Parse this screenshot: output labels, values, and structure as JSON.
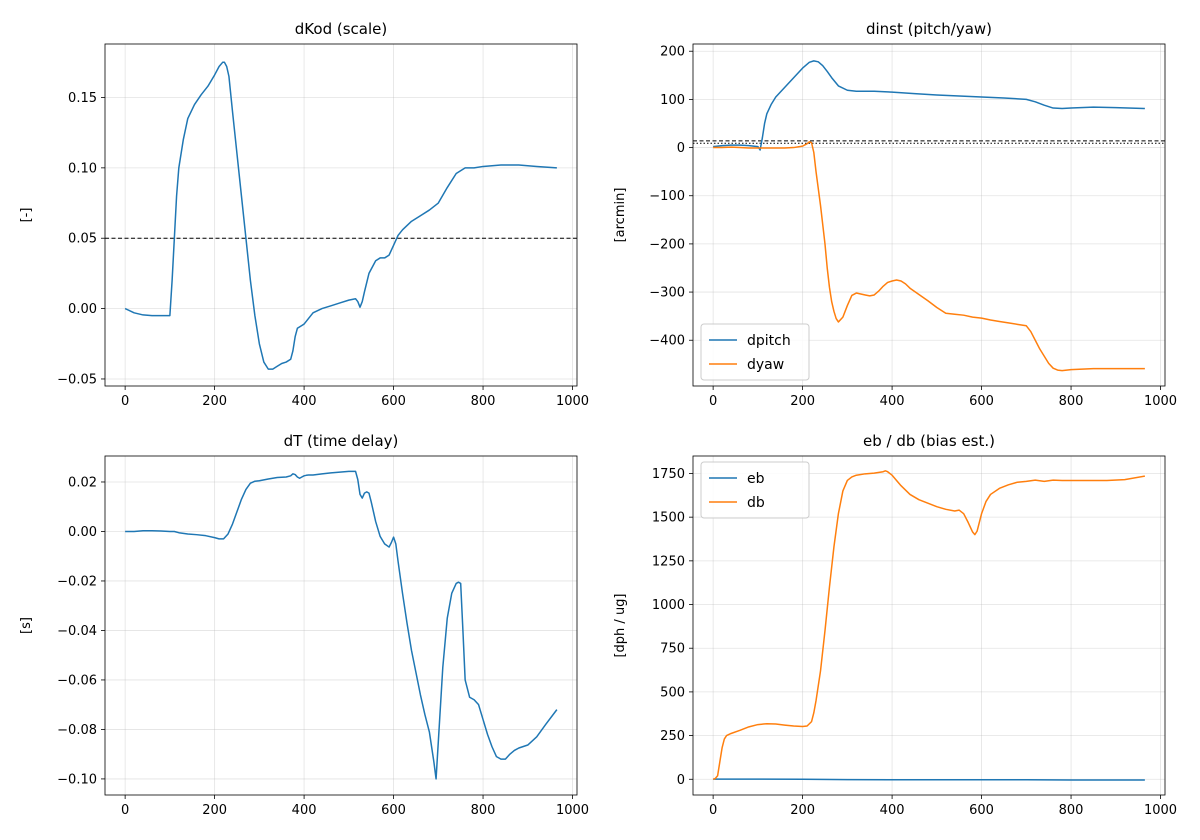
{
  "chart_data": [
    {
      "type": "line",
      "title": "dKod (scale)",
      "xlabel": "",
      "ylabel": "[-]",
      "xlim": [
        -45,
        1010
      ],
      "ylim": [
        -0.055,
        0.188
      ],
      "xticks": [
        0,
        200,
        400,
        600,
        800,
        1000
      ],
      "xtick_labels": [
        "0",
        "200",
        "400",
        "600",
        "800",
        "1000"
      ],
      "yticks": [
        -0.05,
        0.0,
        0.05,
        0.1,
        0.15
      ],
      "ytick_labels": [
        "−0.05",
        "0.00",
        "0.05",
        "0.10",
        "0.15"
      ],
      "grid": true,
      "legend": null,
      "hlines": [
        {
          "y": 0.05,
          "style": "dashed",
          "color": "#000000"
        }
      ],
      "series": [
        {
          "color": "#1f77b4",
          "x": [
            0,
            20,
            40,
            60,
            80,
            100,
            105,
            110,
            115,
            120,
            130,
            140,
            155,
            170,
            185,
            200,
            210,
            218,
            222,
            227,
            232,
            240,
            250,
            260,
            270,
            280,
            290,
            300,
            310,
            320,
            330,
            340,
            350,
            360,
            370,
            375,
            380,
            385,
            390,
            395,
            400,
            410,
            420,
            440,
            460,
            480,
            500,
            515,
            520,
            525,
            530,
            535,
            545,
            560,
            570,
            580,
            590,
            600,
            610,
            620,
            640,
            660,
            680,
            700,
            720,
            740,
            760,
            780,
            800,
            840,
            880,
            920,
            965
          ],
          "y": [
            0.0,
            -0.003,
            -0.0045,
            -0.005,
            -0.005,
            -0.005,
            0.02,
            0.05,
            0.08,
            0.1,
            0.12,
            0.135,
            0.145,
            0.152,
            0.158,
            0.166,
            0.172,
            0.175,
            0.175,
            0.172,
            0.165,
            0.14,
            0.11,
            0.08,
            0.05,
            0.02,
            -0.005,
            -0.025,
            -0.038,
            -0.043,
            -0.043,
            -0.041,
            -0.039,
            -0.038,
            -0.036,
            -0.03,
            -0.02,
            -0.014,
            -0.013,
            -0.012,
            -0.011,
            -0.007,
            -0.003,
            0.0,
            0.002,
            0.004,
            0.006,
            0.007,
            0.005,
            0.001,
            0.005,
            0.012,
            0.025,
            0.034,
            0.036,
            0.036,
            0.038,
            0.045,
            0.052,
            0.056,
            0.062,
            0.066,
            0.07,
            0.075,
            0.086,
            0.096,
            0.1,
            0.1,
            0.101,
            0.102,
            0.102,
            0.101,
            0.1
          ]
        }
      ]
    },
    {
      "type": "line",
      "title": "dinst (pitch/yaw)",
      "xlabel": "",
      "ylabel": "[arcmin]",
      "xlim": [
        -45,
        1010
      ],
      "ylim": [
        -495,
        215
      ],
      "xticks": [
        0,
        200,
        400,
        600,
        800,
        1000
      ],
      "xtick_labels": [
        "0",
        "200",
        "400",
        "600",
        "800",
        "1000"
      ],
      "yticks": [
        -400,
        -300,
        -200,
        -100,
        0,
        100,
        200
      ],
      "ytick_labels": [
        "−400",
        "−300",
        "−200",
        "−100",
        "0",
        "100",
        "200"
      ],
      "grid": true,
      "legend": {
        "position": "lower-left",
        "entries": [
          "dpitch",
          "dyaw"
        ]
      },
      "hlines": [
        {
          "y": 14,
          "style": "dashed",
          "color": "#000000"
        },
        {
          "y": 9,
          "style": "dotted",
          "color": "#000000"
        }
      ],
      "series": [
        {
          "name": "dpitch",
          "color": "#1f77b4",
          "x": [
            0,
            20,
            40,
            60,
            80,
            100,
            105,
            110,
            115,
            120,
            130,
            140,
            160,
            180,
            200,
            215,
            225,
            235,
            245,
            255,
            265,
            280,
            300,
            320,
            340,
            360,
            400,
            450,
            500,
            550,
            600,
            650,
            700,
            720,
            740,
            760,
            780,
            800,
            850,
            900,
            965
          ],
          "y": [
            2,
            4,
            5,
            5,
            4,
            2,
            -5,
            20,
            50,
            70,
            90,
            105,
            125,
            145,
            165,
            177,
            180,
            178,
            170,
            158,
            145,
            128,
            119,
            117,
            117,
            117,
            115,
            112,
            109,
            107,
            105,
            103,
            100,
            95,
            88,
            82,
            81,
            82,
            84,
            83,
            81
          ]
        },
        {
          "name": "dyaw",
          "color": "#ff7f0e",
          "x": [
            0,
            20,
            40,
            60,
            80,
            100,
            120,
            140,
            160,
            180,
            200,
            210,
            215,
            220,
            225,
            230,
            240,
            250,
            255,
            260,
            265,
            270,
            275,
            280,
            290,
            300,
            310,
            320,
            330,
            340,
            350,
            360,
            370,
            380,
            390,
            400,
            410,
            420,
            430,
            440,
            460,
            480,
            500,
            520,
            540,
            560,
            580,
            600,
            620,
            640,
            660,
            680,
            700,
            710,
            720,
            730,
            740,
            750,
            760,
            770,
            780,
            800,
            850,
            900,
            965
          ],
          "y": [
            0,
            0,
            1,
            0,
            -1,
            -1,
            -1,
            -1,
            -1,
            0,
            3,
            8,
            12,
            10,
            -10,
            -50,
            -120,
            -200,
            -250,
            -290,
            -320,
            -340,
            -355,
            -362,
            -352,
            -328,
            -307,
            -302,
            -304,
            -306,
            -308,
            -306,
            -298,
            -288,
            -280,
            -277,
            -275,
            -277,
            -283,
            -292,
            -305,
            -318,
            -332,
            -344,
            -346,
            -348,
            -352,
            -354,
            -358,
            -361,
            -364,
            -367,
            -370,
            -382,
            -400,
            -418,
            -433,
            -448,
            -458,
            -462,
            -463,
            -461,
            -459,
            -459,
            -459
          ]
        }
      ]
    },
    {
      "type": "line",
      "title": "dT (time delay)",
      "xlabel": "",
      "ylabel": "[s]",
      "xlim": [
        -45,
        1010
      ],
      "ylim": [
        -0.1065,
        0.0305
      ],
      "xticks": [
        0,
        200,
        400,
        600,
        800,
        1000
      ],
      "xtick_labels": [
        "0",
        "200",
        "400",
        "600",
        "800",
        "1000"
      ],
      "yticks": [
        -0.1,
        -0.08,
        -0.06,
        -0.04,
        -0.02,
        0.0,
        0.02
      ],
      "ytick_labels": [
        "−0.10",
        "−0.08",
        "−0.06",
        "−0.04",
        "−0.02",
        "0.00",
        "0.02"
      ],
      "grid": true,
      "legend": null,
      "hlines": [],
      "series": [
        {
          "color": "#1f77b4",
          "x": [
            0,
            20,
            40,
            60,
            80,
            100,
            110,
            120,
            140,
            160,
            180,
            200,
            210,
            220,
            230,
            240,
            250,
            260,
            270,
            280,
            290,
            300,
            320,
            340,
            360,
            370,
            375,
            380,
            385,
            390,
            395,
            400,
            405,
            410,
            420,
            440,
            460,
            480,
            500,
            515,
            520,
            525,
            530,
            535,
            540,
            545,
            550,
            555,
            560,
            570,
            580,
            590,
            595,
            600,
            605,
            610,
            620,
            630,
            640,
            650,
            660,
            670,
            680,
            690,
            695,
            700,
            710,
            720,
            730,
            740,
            745,
            750,
            755,
            760,
            770,
            780,
            790,
            800,
            810,
            820,
            830,
            840,
            850,
            860,
            870,
            880,
            900,
            920,
            940,
            965
          ],
          "y": [
            0.0,
            0.0,
            0.0003,
            0.0003,
            0.0002,
            0.0,
            0.0,
            -0.0005,
            -0.001,
            -0.0013,
            -0.0017,
            -0.0025,
            -0.003,
            -0.003,
            -0.001,
            0.003,
            0.008,
            0.013,
            0.017,
            0.0195,
            0.0203,
            0.0205,
            0.0212,
            0.0218,
            0.022,
            0.0225,
            0.0233,
            0.023,
            0.022,
            0.0215,
            0.022,
            0.0225,
            0.0227,
            0.0228,
            0.0228,
            0.0233,
            0.0237,
            0.024,
            0.0243,
            0.0243,
            0.021,
            0.015,
            0.0135,
            0.0155,
            0.016,
            0.0155,
            0.012,
            0.008,
            0.004,
            -0.002,
            -0.005,
            -0.0063,
            -0.0045,
            -0.0023,
            -0.005,
            -0.012,
            -0.025,
            -0.037,
            -0.048,
            -0.057,
            -0.066,
            -0.074,
            -0.081,
            -0.093,
            -0.1,
            -0.085,
            -0.055,
            -0.035,
            -0.025,
            -0.021,
            -0.0205,
            -0.021,
            -0.04,
            -0.06,
            -0.067,
            -0.068,
            -0.07,
            -0.076,
            -0.082,
            -0.087,
            -0.091,
            -0.092,
            -0.092,
            -0.09,
            -0.0885,
            -0.0875,
            -0.0863,
            -0.083,
            -0.078,
            -0.072
          ]
        }
      ]
    },
    {
      "type": "line",
      "title": "eb / db (bias est.)",
      "xlabel": "",
      "ylabel": "[dph / ug]",
      "xlim": [
        -45,
        1010
      ],
      "ylim": [
        -90,
        1850
      ],
      "xticks": [
        0,
        200,
        400,
        600,
        800,
        1000
      ],
      "xtick_labels": [
        "0",
        "200",
        "400",
        "600",
        "800",
        "1000"
      ],
      "yticks": [
        0,
        250,
        500,
        750,
        1000,
        1250,
        1500,
        1750
      ],
      "ytick_labels": [
        "0",
        "250",
        "500",
        "750",
        "1000",
        "1250",
        "1500",
        "1750"
      ],
      "grid": true,
      "legend": {
        "position": "upper-left",
        "entries": [
          "eb",
          "db"
        ]
      },
      "hlines": [],
      "series": [
        {
          "name": "eb",
          "color": "#1f77b4",
          "x": [
            0,
            100,
            200,
            300,
            400,
            500,
            600,
            700,
            800,
            900,
            965
          ],
          "y": [
            1,
            1,
            0,
            -2,
            -3,
            -3,
            -3,
            -3,
            -4,
            -4,
            -4
          ]
        },
        {
          "name": "db",
          "color": "#ff7f0e",
          "x": [
            0,
            5,
            10,
            15,
            20,
            25,
            30,
            40,
            60,
            80,
            100,
            120,
            140,
            160,
            180,
            200,
            210,
            220,
            225,
            230,
            240,
            250,
            260,
            270,
            280,
            290,
            300,
            310,
            320,
            340,
            360,
            380,
            385,
            390,
            400,
            420,
            440,
            460,
            480,
            500,
            520,
            540,
            550,
            560,
            570,
            580,
            585,
            590,
            600,
            610,
            620,
            640,
            660,
            680,
            700,
            720,
            740,
            760,
            780,
            800,
            840,
            880,
            920,
            965
          ],
          "y": [
            0,
            5,
            20,
            100,
            180,
            230,
            250,
            262,
            280,
            300,
            313,
            318,
            316,
            310,
            305,
            302,
            305,
            330,
            380,
            450,
            620,
            850,
            1100,
            1330,
            1520,
            1650,
            1710,
            1730,
            1740,
            1748,
            1752,
            1760,
            1765,
            1760,
            1740,
            1680,
            1630,
            1600,
            1580,
            1560,
            1545,
            1535,
            1540,
            1520,
            1470,
            1415,
            1400,
            1420,
            1520,
            1590,
            1630,
            1665,
            1685,
            1700,
            1705,
            1712,
            1705,
            1712,
            1710,
            1710,
            1710,
            1710,
            1715,
            1735
          ]
        }
      ]
    }
  ]
}
